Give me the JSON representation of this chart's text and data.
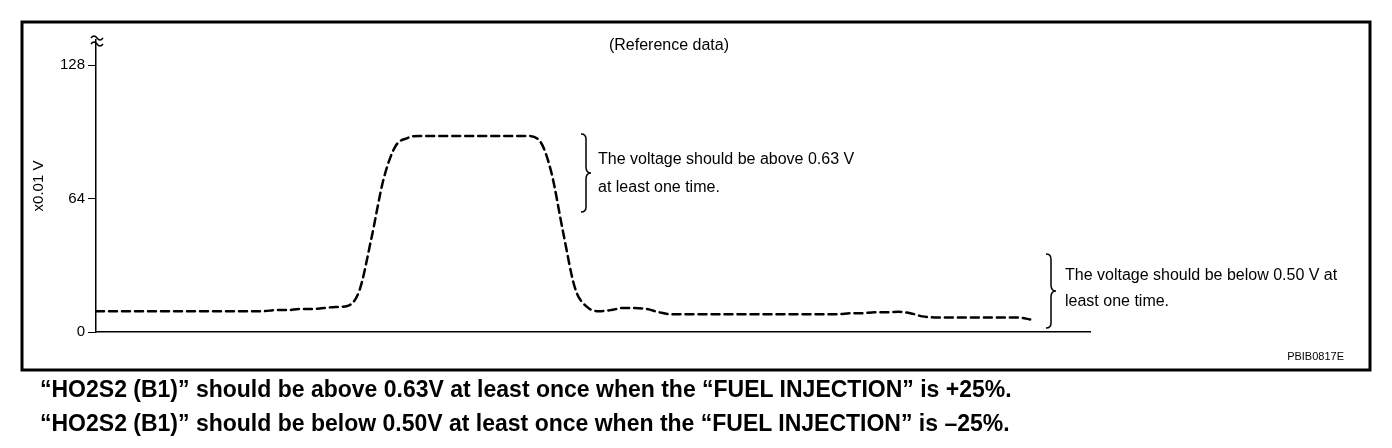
{
  "chart_data": {
    "type": "line",
    "title": "(Reference data)",
    "ylabel": "x0.01 V",
    "categories": [
      null,
      null,
      null,
      null,
      null,
      null,
      null,
      null,
      null,
      null,
      null,
      null,
      null,
      null,
      null,
      null,
      null,
      null,
      null,
      null,
      null,
      null,
      null,
      null,
      null,
      null,
      null,
      null,
      null,
      null,
      null,
      null,
      null,
      null,
      null,
      null,
      null,
      null,
      null,
      null,
      null,
      null,
      null,
      null,
      null,
      null,
      null,
      null,
      null,
      null,
      null,
      null,
      null,
      null,
      null,
      null,
      null,
      null,
      null,
      null,
      null,
      null,
      null,
      null,
      null,
      null,
      null,
      null,
      null,
      null,
      null,
      null,
      null,
      null,
      null,
      null,
      null,
      null,
      null,
      null,
      null,
      null,
      null,
      null
    ],
    "series": [
      {
        "color": "#000000",
        "values": [
          10,
          10,
          10,
          10,
          10,
          10,
          10,
          10,
          10,
          10,
          10,
          10,
          10,
          10,
          10,
          10.5,
          10.5,
          11,
          11,
          11.5,
          12,
          12.5,
          20,
          45,
          73,
          89,
          93,
          94,
          94,
          94,
          94,
          94,
          94,
          94,
          94,
          94,
          94,
          92,
          77,
          48,
          21,
          12,
          10,
          10.5,
          11.5,
          11.5,
          11,
          9.5,
          8.5,
          8.5,
          8.5,
          8.5,
          8.5,
          8.5,
          8.5,
          8.5,
          8.5,
          8.5,
          8.5,
          8.5,
          8.5,
          8.5,
          8.5,
          9,
          9,
          9.5,
          9.5,
          9.7,
          9,
          7.5,
          7,
          7,
          7,
          7,
          7,
          7,
          7,
          7,
          6,
          null,
          null,
          null,
          null,
          null
        ]
      }
    ],
    "ylim": [
      0,
      140
    ],
    "yticks": [
      0,
      64,
      128
    ],
    "grid": false,
    "legend": false,
    "marker": "none",
    "line_style": "dashed",
    "tick_labels": "y",
    "annotations": [
      "The voltage should be above 0.63 V at least one time.",
      "The voltage should be below 0.50 V at least one time.",
      "PBIB0817E",
      "“HO2S2 (B1)” should be above 0.63V at least once when the “FUEL INJECTION” is +25%.",
      "“HO2S2 (B1)” should be below 0.50V at least once when the “FUEL INJECTION” is –25%."
    ]
  }
}
